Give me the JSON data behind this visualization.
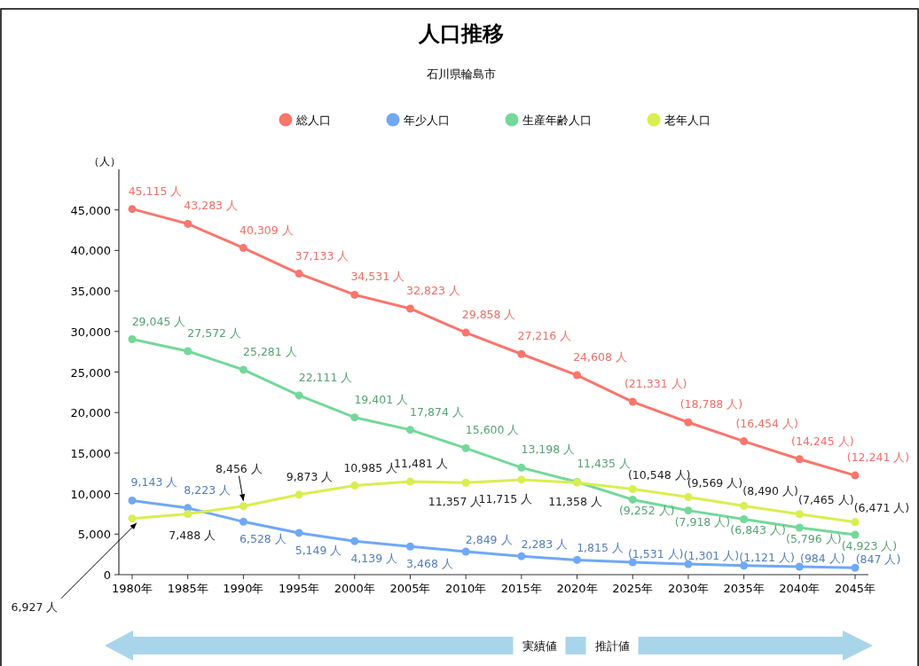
{
  "chart_data": {
    "type": "line",
    "title": "人口推移",
    "subtitle": "石川県輪島市",
    "ylabel": "（人）",
    "categories": [
      "1980年",
      "1985年",
      "1990年",
      "1995年",
      "2000年",
      "2005年",
      "2010年",
      "2015年",
      "2020年",
      "2025年",
      "2030年",
      "2035年",
      "2040年",
      "2045年"
    ],
    "ylim": [
      0,
      50000
    ],
    "yticks": [
      {
        "value": 0,
        "label": "0"
      },
      {
        "value": 5000,
        "label": "5,000"
      },
      {
        "value": 10000,
        "label": "10,000"
      },
      {
        "value": 15000,
        "label": "15,000"
      },
      {
        "value": 20000,
        "label": "20,000"
      },
      {
        "value": 25000,
        "label": "25,000"
      },
      {
        "value": 30000,
        "label": "30,000"
      },
      {
        "value": 35000,
        "label": "35,000"
      },
      {
        "value": 40000,
        "label": "40,000"
      },
      {
        "value": 45000,
        "label": "45,000"
      }
    ],
    "marker": "circle",
    "legend": "top",
    "series": [
      {
        "name": "総人口",
        "color": "#f8766d",
        "values": [
          45115,
          43283,
          40309,
          37133,
          34531,
          32823,
          29858,
          27216,
          24608,
          21331,
          18788,
          16454,
          14245,
          12241
        ],
        "value_labels": [
          "45,115 人",
          "43,283 人",
          "40,309 人",
          "37,133 人",
          "34,531 人",
          "32,823 人",
          "29,858 人",
          "27,216 人",
          "24,608 人",
          "(21,331 人)",
          "(18,788 人)",
          "(16,454 人)",
          "(14,245 人)",
          "(12,241 人)"
        ]
      },
      {
        "name": "年少人口",
        "color": "#6fa8f5",
        "values": [
          9143,
          8223,
          6528,
          5149,
          4139,
          3468,
          2849,
          2283,
          1815,
          1531,
          1301,
          1121,
          984,
          847
        ],
        "value_labels": [
          "9,143 人",
          "8,223 人",
          "6,528 人",
          "5,149 人",
          "4,139 人",
          "3,468 人",
          "2,849 人",
          "2,283 人",
          "1,815 人",
          "(1,531 人)",
          "(1,301 人)",
          "(1,121 人)",
          "(984 人)",
          "(847 人)"
        ]
      },
      {
        "name": "生産年齢人口",
        "color": "#74d89a",
        "values": [
          29045,
          27572,
          25281,
          22111,
          19401,
          17874,
          15600,
          13198,
          11435,
          9252,
          7918,
          6843,
          5796,
          4923
        ],
        "value_labels": [
          "29,045 人",
          "27,572 人",
          "25,281 人",
          "22,111 人",
          "19,401 人",
          "17,874 人",
          "15,600 人",
          "13,198 人",
          "11,435 人",
          "(9,252 人)",
          "(7,918 人)",
          "(6,843 人)",
          "(5,796 人)",
          "(4,923 人)"
        ]
      },
      {
        "name": "老年人口",
        "color": "#d9ee4f",
        "values": [
          6927,
          7488,
          8456,
          9873,
          10985,
          11481,
          11357,
          11715,
          11358,
          10548,
          9569,
          8490,
          7465,
          6471
        ],
        "value_labels": [
          "6,927 人",
          "7,488 人",
          "8,456 人",
          "9,873 人",
          "10,985 人",
          "11,481 人",
          "11,357 人",
          "11,715 人",
          "11,358 人",
          "(10,548 人)",
          "(9,569 人)",
          "(8,490 人)",
          "(7,465 人)",
          "(6,471 人)"
        ]
      }
    ],
    "annotations": [
      "実績値",
      "推計値"
    ]
  }
}
